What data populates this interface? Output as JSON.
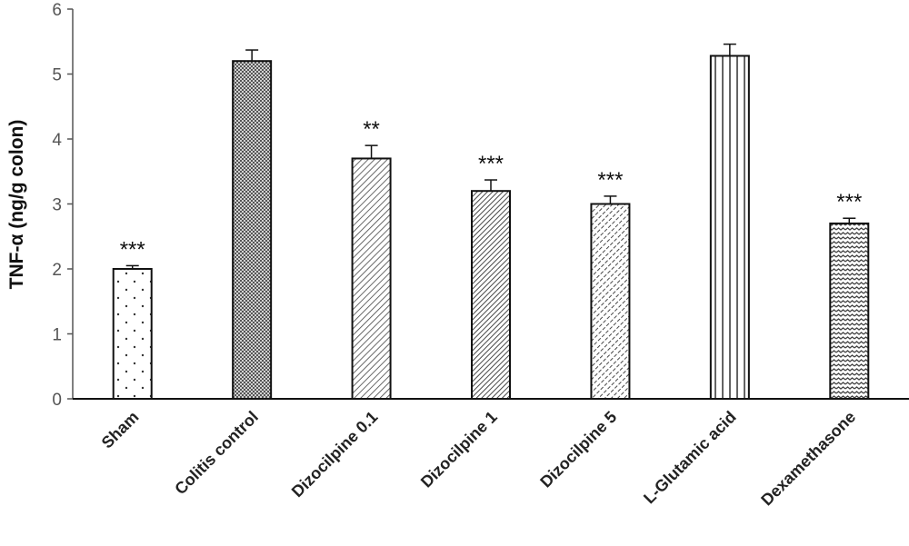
{
  "chart_data": {
    "type": "bar",
    "title": "",
    "xlabel": "",
    "ylabel": "TNF-α (ng/g colon)",
    "ylim": [
      0,
      6
    ],
    "yticks": [
      0,
      1,
      2,
      3,
      4,
      5,
      6
    ],
    "grid": false,
    "categories": [
      "Sham",
      "Colitis control",
      "Dizocilpine 0.1",
      "Dizocilpine 1",
      "Dizocilpine 5",
      "L-Glutamic acid",
      "Dexamethasone"
    ],
    "values": [
      2.0,
      5.2,
      3.7,
      3.2,
      3.0,
      5.28,
      2.7
    ],
    "errors": [
      0.05,
      0.17,
      0.2,
      0.17,
      0.12,
      0.18,
      0.08
    ],
    "significance": [
      "***",
      "",
      "**",
      "***",
      "***",
      "",
      "***"
    ],
    "patterns": [
      "dots",
      "checker",
      "diag-thin",
      "diag-dense",
      "diag-dash",
      "vertical",
      "zigzag"
    ]
  }
}
